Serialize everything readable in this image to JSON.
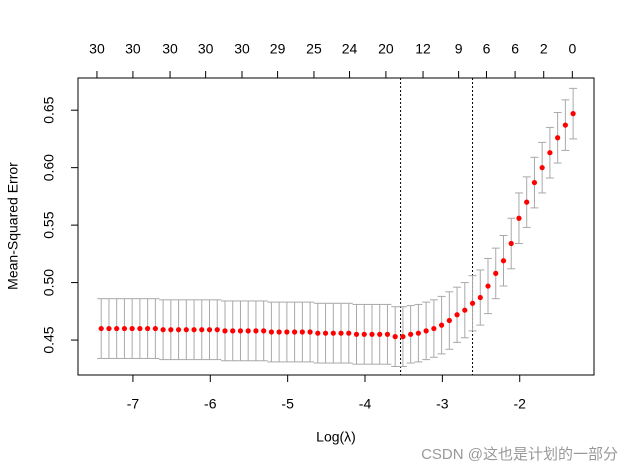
{
  "chart_data": {
    "type": "errorbar",
    "xlabel": "Log(λ)",
    "ylabel": "Mean-Squared Error",
    "watermark": "CSDN @这也是计划的一部分",
    "xlim": [
      -7.71,
      -1.04
    ],
    "ylim": [
      0.4196,
      0.678
    ],
    "xticks": [
      -7,
      -6,
      -5,
      -4,
      -3,
      -2
    ],
    "yticks": [
      0.45,
      {
        "value": 0.5,
        "label": "0.50"
      },
      0.55,
      {
        "value": 0.6,
        "label": "0.60"
      },
      0.65
    ],
    "top_ticks": [
      {
        "value": -7.465,
        "label": "30"
      },
      {
        "value": -7.0,
        "label": "30"
      },
      {
        "value": -6.52,
        "label": "30"
      },
      {
        "value": -6.06,
        "label": "30"
      },
      {
        "value": -5.59,
        "label": "30"
      },
      {
        "value": -5.13,
        "label": "29"
      },
      {
        "value": -4.66,
        "label": "25"
      },
      {
        "value": -4.2,
        "label": "24"
      },
      {
        "value": -3.73,
        "label": "20"
      },
      {
        "value": -3.25,
        "label": "12"
      },
      {
        "value": -2.79,
        "label": "9"
      },
      {
        "value": -2.43,
        "label": "6"
      },
      {
        "value": -2.06,
        "label": "6"
      },
      {
        "value": -1.69,
        "label": "2"
      },
      {
        "value": -1.32,
        "label": "0"
      }
    ],
    "vlines": [
      -3.54,
      -2.61
    ],
    "color": "#ff0000",
    "error_color": "#a9a9a9",
    "x": [
      -7.41,
      -7.31,
      -7.21,
      -7.11,
      -7.01,
      -6.91,
      -6.81,
      -6.71,
      -6.61,
      -6.51,
      -6.41,
      -6.31,
      -6.21,
      -6.11,
      -6.01,
      -5.91,
      -5.81,
      -5.71,
      -5.61,
      -5.51,
      -5.41,
      -5.31,
      -5.21,
      -5.11,
      -5.01,
      -4.91,
      -4.81,
      -4.71,
      -4.61,
      -4.51,
      -4.41,
      -4.31,
      -4.21,
      -4.11,
      -4.01,
      -3.91,
      -3.81,
      -3.71,
      -3.61,
      -3.51,
      -3.41,
      -3.31,
      -3.21,
      -3.11,
      -3.01,
      -2.91,
      -2.81,
      -2.71,
      -2.61,
      -2.51,
      -2.41,
      -2.31,
      -2.21,
      -2.11,
      -2.01,
      -1.91,
      -1.81,
      -1.71,
      -1.61,
      -1.51,
      -1.41,
      -1.31
    ],
    "values": [
      0.46,
      0.46,
      0.46,
      0.46,
      0.46,
      0.46,
      0.46,
      0.46,
      0.459,
      0.459,
      0.459,
      0.459,
      0.459,
      0.459,
      0.459,
      0.459,
      0.458,
      0.458,
      0.458,
      0.458,
      0.458,
      0.458,
      0.457,
      0.457,
      0.457,
      0.457,
      0.457,
      0.457,
      0.456,
      0.456,
      0.456,
      0.456,
      0.456,
      0.455,
      0.455,
      0.455,
      0.455,
      0.455,
      0.453,
      0.453,
      0.455,
      0.456,
      0.458,
      0.46,
      0.463,
      0.467,
      0.472,
      0.476,
      0.482,
      0.487,
      0.497,
      0.508,
      0.519,
      0.534,
      0.556,
      0.57,
      0.587,
      0.6,
      0.613,
      0.626,
      0.637,
      0.647
    ],
    "errors": [
      0.026,
      0.026,
      0.026,
      0.026,
      0.026,
      0.026,
      0.026,
      0.026,
      0.026,
      0.026,
      0.026,
      0.026,
      0.026,
      0.026,
      0.026,
      0.026,
      0.026,
      0.026,
      0.026,
      0.026,
      0.026,
      0.026,
      0.026,
      0.026,
      0.026,
      0.026,
      0.026,
      0.026,
      0.026,
      0.026,
      0.026,
      0.026,
      0.026,
      0.026,
      0.026,
      0.026,
      0.026,
      0.026,
      0.026,
      0.026,
      0.025,
      0.025,
      0.025,
      0.025,
      0.025,
      0.025,
      0.024,
      0.024,
      0.024,
      0.024,
      0.024,
      0.022,
      0.022,
      0.022,
      0.022,
      0.022,
      0.022,
      0.022,
      0.022,
      0.022,
      0.022,
      0.022
    ]
  }
}
